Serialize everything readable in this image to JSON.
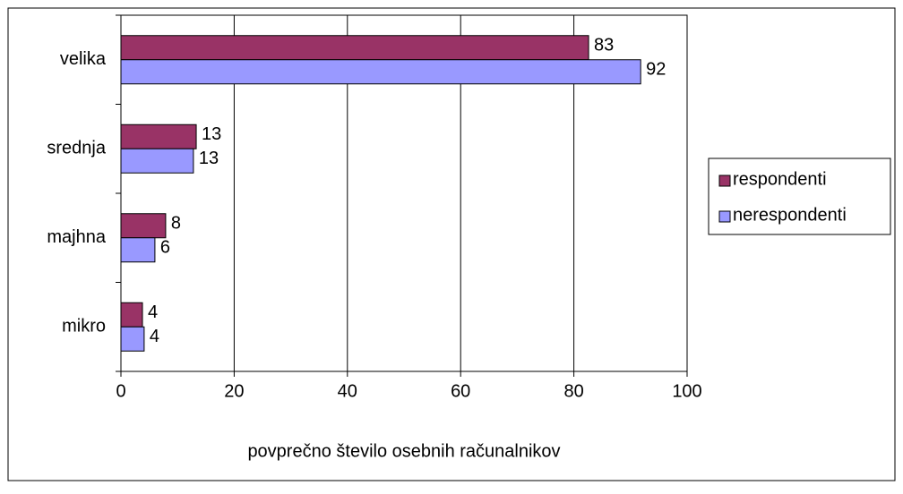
{
  "chart_data": {
    "type": "hbar",
    "x_label": "povprečno število osebnih računalnikov",
    "categories": [
      "velika",
      "srednja",
      "majhna",
      "mikro"
    ],
    "series": [
      {
        "name": "respondenti",
        "color": "#993366",
        "values": [
          82.6,
          13.3,
          7.9,
          3.8
        ],
        "value_labels": [
          "83",
          "13",
          "8",
          "4"
        ]
      },
      {
        "name": "nerespondenti",
        "color": "#9999ff",
        "values": [
          91.8,
          12.8,
          6.0,
          4.1
        ],
        "value_labels": [
          "92",
          "13",
          "6",
          "4"
        ]
      }
    ],
    "xlim": [
      0,
      100
    ],
    "xticks": [
      0,
      20,
      40,
      60,
      80,
      100
    ],
    "grid": true,
    "legend": "right"
  }
}
